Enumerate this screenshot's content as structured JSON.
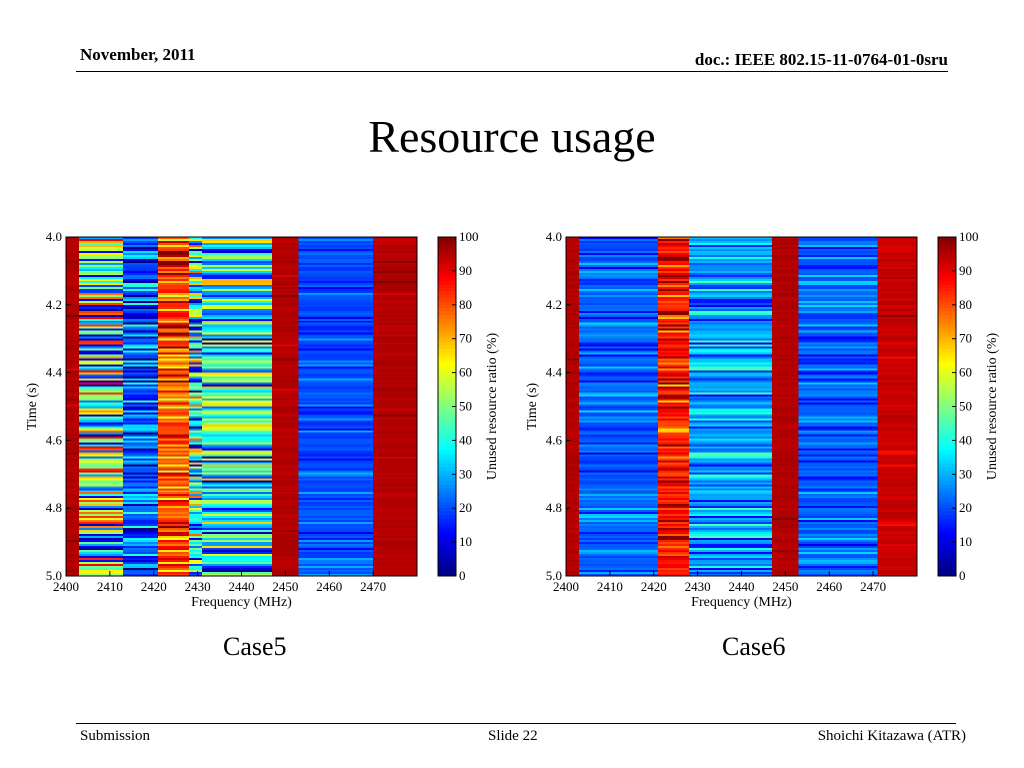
{
  "slide": {
    "header_date": "November, 2011",
    "header_doc": "doc.: IEEE 802.15-11-0764-01-0sru",
    "title": "Resource usage",
    "footer_left": "Submission",
    "footer_center": "Slide 22",
    "footer_right": "Shoichi Kitazawa (ATR)"
  },
  "chart_data": [
    {
      "type": "heatmap",
      "caption": "Case5",
      "xlabel": "Frequency (MHz)",
      "ylabel": "Time (s)",
      "colorbar_label": "Unused resource ratio (%)",
      "xlim": [
        2400,
        2480
      ],
      "ylim": [
        4.0,
        5.0
      ],
      "y_inverted": true,
      "xticks": [
        2400,
        2410,
        2420,
        2430,
        2440,
        2450,
        2460,
        2470
      ],
      "yticks": [
        "4.0",
        "4.2",
        "4.4",
        "4.6",
        "4.8",
        "5.0"
      ],
      "colorbar_ticks": [
        0,
        10,
        20,
        30,
        40,
        50,
        60,
        70,
        80,
        90,
        100
      ],
      "colorbar_range": [
        0,
        100
      ],
      "colormap": "jet",
      "bands": [
        {
          "x0": 2400,
          "x1": 2403,
          "mean": 95,
          "spread": 5,
          "row_noise": 0.05
        },
        {
          "x0": 2403,
          "x1": 2413,
          "mean": 45,
          "spread": 45,
          "row_noise": 0.9
        },
        {
          "x0": 2413,
          "x1": 2421,
          "mean": 20,
          "spread": 25,
          "row_noise": 0.6
        },
        {
          "x0": 2421,
          "x1": 2428,
          "mean": 80,
          "spread": 25,
          "row_noise": 0.6
        },
        {
          "x0": 2428,
          "x1": 2431,
          "mean": 40,
          "spread": 40,
          "row_noise": 0.8
        },
        {
          "x0": 2431,
          "x1": 2447,
          "mean": 35,
          "spread": 35,
          "row_noise": 0.8
        },
        {
          "x0": 2447,
          "x1": 2453,
          "mean": 95,
          "spread": 5,
          "row_noise": 0.05
        },
        {
          "x0": 2453,
          "x1": 2470,
          "mean": 20,
          "spread": 10,
          "row_noise": 0.4
        },
        {
          "x0": 2470,
          "x1": 2480,
          "mean": 95,
          "spread": 5,
          "row_noise": 0.08
        }
      ]
    },
    {
      "type": "heatmap",
      "caption": "Case6",
      "xlabel": "Frequency (MHz)",
      "ylabel": "Time (s)",
      "colorbar_label": "Unused resource ratio (%)",
      "xlim": [
        2400,
        2480
      ],
      "ylim": [
        4.0,
        5.0
      ],
      "y_inverted": true,
      "xticks": [
        2400,
        2410,
        2420,
        2430,
        2440,
        2450,
        2460,
        2470
      ],
      "yticks": [
        "4.0",
        "4.2",
        "4.4",
        "4.6",
        "4.8",
        "5.0"
      ],
      "colorbar_ticks": [
        0,
        10,
        20,
        30,
        40,
        50,
        60,
        70,
        80,
        90,
        100
      ],
      "colorbar_range": [
        0,
        100
      ],
      "colormap": "jet",
      "bands": [
        {
          "x0": 2400,
          "x1": 2403,
          "mean": 95,
          "spread": 5,
          "row_noise": 0.05
        },
        {
          "x0": 2403,
          "x1": 2421,
          "mean": 22,
          "spread": 12,
          "row_noise": 0.5
        },
        {
          "x0": 2421,
          "x1": 2428,
          "mean": 85,
          "spread": 20,
          "row_noise": 0.5
        },
        {
          "x0": 2428,
          "x1": 2447,
          "mean": 28,
          "spread": 18,
          "row_noise": 0.6
        },
        {
          "x0": 2447,
          "x1": 2453,
          "mean": 95,
          "spread": 5,
          "row_noise": 0.05
        },
        {
          "x0": 2453,
          "x1": 2471,
          "mean": 22,
          "spread": 12,
          "row_noise": 0.5
        },
        {
          "x0": 2471,
          "x1": 2480,
          "mean": 93,
          "spread": 7,
          "row_noise": 0.15
        }
      ]
    }
  ]
}
